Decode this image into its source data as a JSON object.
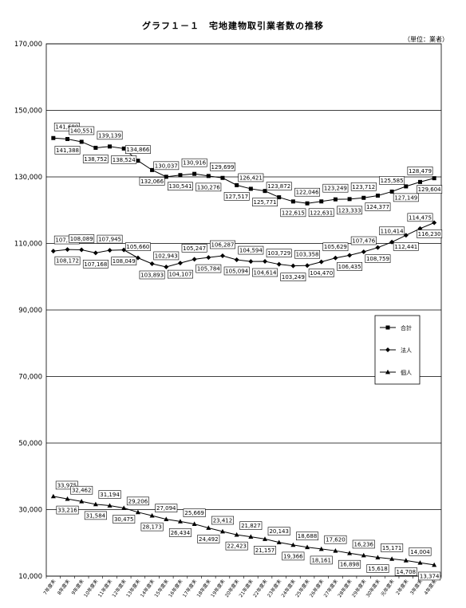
{
  "chart_data": {
    "type": "line",
    "title": "グラフ１－１　宅地建物取引業者数の推移",
    "unit": "（単位：業者）",
    "ylim": [
      10000,
      170000
    ],
    "yticks": [
      10000,
      30000,
      50000,
      70000,
      90000,
      110000,
      130000,
      150000,
      170000
    ],
    "ytick_labels": [
      "10,000",
      "30,000",
      "50,000",
      "70,000",
      "90,000",
      "110,000",
      "130,000",
      "150,000",
      "170,000"
    ],
    "grid": true,
    "legend_position": "right",
    "categories": [
      "7年度末",
      "8年度末",
      "9年度末",
      "10年度末",
      "11年度末",
      "12年度末",
      "13年度末",
      "14年度末",
      "15年度末",
      "16年度末",
      "17年度末",
      "18年度末",
      "19年度末",
      "20年度末",
      "21年度末",
      "22年度末",
      "23年度末",
      "24年度末",
      "25年度末",
      "26年度末",
      "27年度末",
      "28年度末",
      "29年度末",
      "30年度末",
      "元年度末",
      "2年度末",
      "3年度末",
      "4年度末"
    ],
    "series": [
      {
        "name": "合計",
        "marker": "square",
        "values": [
          141680,
          141388,
          140551,
          138752,
          139139,
          138524,
          134866,
          132066,
          130037,
          130541,
          130916,
          130276,
          129699,
          127517,
          126421,
          125771,
          123872,
          122615,
          122046,
          122631,
          123249,
          123333,
          123712,
          124377,
          125585,
          127149,
          128479,
          129604
        ],
        "labels": [
          "141,680",
          "141,388",
          "140,551",
          "138,752",
          "139,139",
          "138,524",
          "134,866",
          "132,066",
          "130,037",
          "130,541",
          "130,916",
          "130,276",
          "129,699",
          "127,517",
          "126,421",
          "125,771",
          "123,872",
          "122,615",
          "122,046",
          "122,631",
          "123,249",
          "123,333",
          "123,712",
          "124,377",
          "125,585",
          "127,149",
          "128,479",
          "129,604"
        ]
      },
      {
        "name": "法人",
        "marker": "diamond",
        "values": [
          107705,
          108172,
          108089,
          107168,
          107945,
          108049,
          105660,
          103893,
          102943,
          104107,
          105247,
          105784,
          106287,
          105094,
          104594,
          104614,
          103729,
          103249,
          103358,
          104470,
          105629,
          106435,
          107476,
          108759,
          110414,
          112441,
          114475,
          116230
        ],
        "labels": [
          "107,705",
          "108,172",
          "108,089",
          "107,168",
          "107,945",
          "108,049",
          "105,660",
          "103,893",
          "102,943",
          "104,107",
          "105,247",
          "105,784",
          "106,287",
          "105,094",
          "104,594",
          "104,614",
          "103,729",
          "103,249",
          "103,358",
          "104,470",
          "105,629",
          "106,435",
          "107,476",
          "108,759",
          "110,414",
          "112,441",
          "114,475",
          "116,230"
        ]
      },
      {
        "name": "個人",
        "marker": "triangle",
        "values": [
          33975,
          33216,
          32462,
          31584,
          31194,
          30475,
          29206,
          28173,
          27094,
          26434,
          25669,
          24492,
          23412,
          22423,
          21827,
          21157,
          20143,
          19366,
          18688,
          18161,
          17620,
          16898,
          16236,
          15618,
          15171,
          14708,
          14004,
          13374
        ],
        "labels": [
          "33,975",
          "33,216",
          "32,462",
          "31,584",
          "31,194",
          "30,475",
          "29,206",
          "28,173",
          "27,094",
          "26,434",
          "25,669",
          "24,492",
          "23,412",
          "22,423",
          "21,827",
          "21,157",
          "20,143",
          "19,366",
          "18,688",
          "18,161",
          "17,620",
          "16,898",
          "16,236",
          "15,618",
          "15,171",
          "14,708",
          "14,004",
          "13,374"
        ]
      }
    ]
  }
}
